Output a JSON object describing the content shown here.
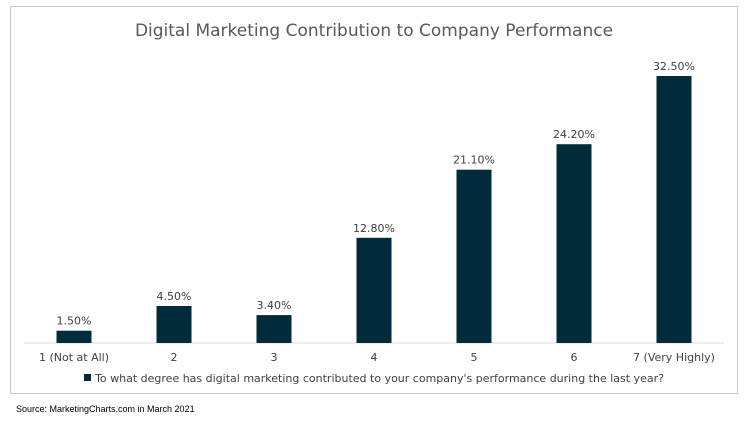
{
  "source": "Source: MarketingCharts.com in March 2021",
  "chart_data": {
    "type": "bar",
    "title": "Digital Marketing Contribution to Company Performance",
    "xlabel": "",
    "ylabel": "",
    "categories": [
      "1 (Not at All)",
      "2",
      "3",
      "4",
      "5",
      "6",
      "7 (Very Highly)"
    ],
    "series": [
      {
        "name": "To what degree has digital marketing contributed to your company's performance during the last year?",
        "values": [
          1.5,
          4.5,
          3.4,
          12.8,
          21.1,
          24.2,
          32.5
        ],
        "labels": [
          "1.50%",
          "4.50%",
          "3.40%",
          "12.80%",
          "21.10%",
          "24.20%",
          "32.50%"
        ],
        "color": "#012a3a"
      }
    ],
    "ylim": [
      0,
      35
    ],
    "grid": false,
    "legend_position": "bottom"
  }
}
